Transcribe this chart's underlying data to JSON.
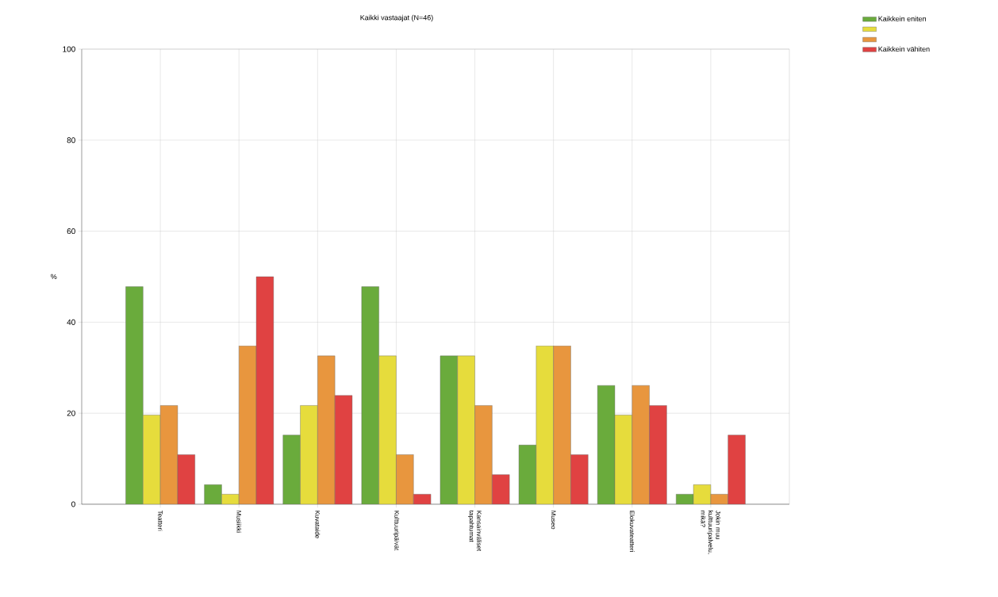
{
  "chart_data": {
    "type": "bar",
    "title": "Kaikki vastaajat (N=46)",
    "ylabel": "%",
    "categories": [
      "Teatteri",
      "Musiikki",
      "Kuvataide",
      "Kulttuuripäivät",
      "Kansainväliset tapahtumat",
      "Museo",
      "Elokuvateatteri",
      "Jokin muu kulttuuripalvelu, mikä?"
    ],
    "series": [
      {
        "name": "Kaikkein eniten",
        "color": "#6aab3c",
        "values": [
          47.8,
          4.3,
          15.2,
          47.8,
          32.6,
          13.0,
          26.1,
          2.2
        ]
      },
      {
        "color": "#e6dc3c",
        "values": [
          19.6,
          2.2,
          21.7,
          32.6,
          32.6,
          34.8,
          19.6,
          4.3
        ]
      },
      {
        "color": "#e8963e",
        "values": [
          21.7,
          34.8,
          32.6,
          10.9,
          21.7,
          34.8,
          26.1,
          2.2
        ]
      },
      {
        "name": "Kaikkein vähiten",
        "color": "#e04242",
        "values": [
          10.9,
          50.0,
          23.9,
          2.2,
          6.5,
          10.9,
          21.7,
          15.2
        ]
      }
    ],
    "ylim": [
      0,
      100
    ],
    "yticks": [
      0,
      20,
      40,
      60,
      80,
      100
    ],
    "grid": true,
    "legend": "top right"
  }
}
